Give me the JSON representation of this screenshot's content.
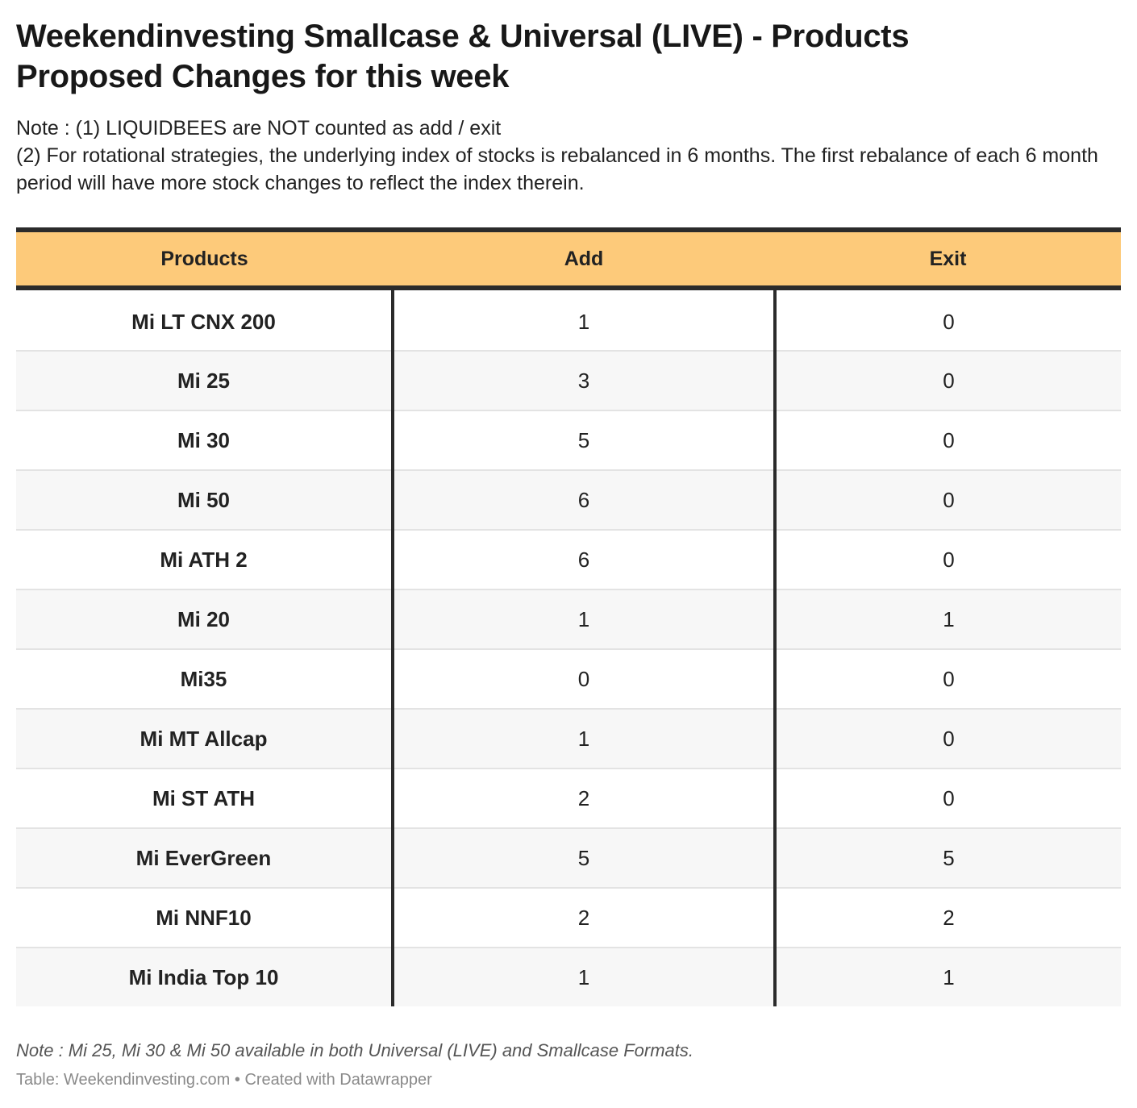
{
  "chart_data": {
    "type": "table",
    "title": "Weekendinvesting Smallcase & Universal (LIVE) - Products Proposed Changes for this week",
    "notes": [
      "Note : (1) LIQUIDBEES are NOT counted as add / exit",
      "(2) For rotational strategies, the underlying index of stocks is rebalanced in 6 months. The first rebalance of each 6 month period will have more stock changes to reflect the index therein."
    ],
    "columns": [
      "Products",
      "Add",
      "Exit"
    ],
    "rows": [
      {
        "product": "Mi LT CNX 200",
        "add": 1,
        "exit": 0
      },
      {
        "product": "Mi 25",
        "add": 3,
        "exit": 0
      },
      {
        "product": "Mi 30",
        "add": 5,
        "exit": 0
      },
      {
        "product": "Mi 50",
        "add": 6,
        "exit": 0
      },
      {
        "product": "Mi ATH 2",
        "add": 6,
        "exit": 0
      },
      {
        "product": "Mi 20",
        "add": 1,
        "exit": 1
      },
      {
        "product": "Mi35",
        "add": 0,
        "exit": 0
      },
      {
        "product": "Mi MT Allcap",
        "add": 1,
        "exit": 0
      },
      {
        "product": "Mi ST ATH",
        "add": 2,
        "exit": 0
      },
      {
        "product": "Mi EverGreen",
        "add": 5,
        "exit": 5
      },
      {
        "product": "Mi NNF10",
        "add": 2,
        "exit": 2
      },
      {
        "product": "Mi India Top 10",
        "add": 1,
        "exit": 1
      }
    ],
    "footnote": "Note : Mi 25, Mi 30 & Mi 50 available in both Universal (LIVE) and Smallcase Formats.",
    "source": "Table: Weekendinvesting.com • Created with Datawrapper",
    "colors": {
      "header_bg": "#fdca7a",
      "rule": "#2b2b2b",
      "stripe": "#f7f7f7"
    }
  }
}
